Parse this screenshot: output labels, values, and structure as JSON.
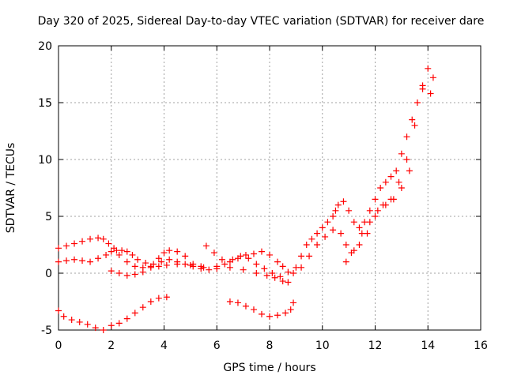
{
  "chart_data": {
    "type": "scatter",
    "title": "Day 320 of 2025, Sidereal Day-to-day VTEC variation (SDTVAR) for receiver dare",
    "xlabel": "GPS time / hours",
    "ylabel": "SDTVAR / TECUs",
    "xlim": [
      0,
      16
    ],
    "ylim": [
      -5,
      20
    ],
    "xticks": [
      "0",
      "2",
      "4",
      "6",
      "8",
      "10",
      "12",
      "14",
      "16"
    ],
    "yticks": [
      "-5",
      "0",
      "5",
      "10",
      "15",
      "20"
    ],
    "grid": true,
    "marker": "+",
    "color": "#ff0000",
    "series": [
      {
        "x": [
          0.0,
          0.3,
          0.6,
          0.9,
          1.2,
          1.5,
          1.7,
          1.9,
          2.1,
          2.3,
          2.6,
          2.9,
          3.2,
          3.5,
          3.8,
          4.1,
          4.5,
          5.0,
          5.5,
          6.0,
          6.5,
          7.0,
          7.5,
          7.9,
          8.2,
          8.5,
          8.7,
          8.9
        ],
        "y": [
          2.2,
          2.4,
          2.6,
          2.8,
          3.0,
          3.1,
          3.0,
          2.6,
          2.2,
          1.6,
          1.0,
          0.6,
          0.5,
          0.5,
          0.6,
          0.7,
          0.8,
          0.7,
          0.5,
          0.6,
          0.5,
          0.3,
          0.0,
          -0.2,
          -0.4,
          -0.7,
          -0.8,
          0.0
        ]
      },
      {
        "x": [
          0.0,
          0.3,
          0.6,
          0.9,
          1.2,
          1.5,
          1.8,
          2.0,
          2.2,
          2.4,
          2.6,
          2.8,
          3.0,
          3.3,
          3.6,
          3.9,
          4.2,
          4.5,
          4.8,
          5.1,
          5.4
        ],
        "y": [
          1.0,
          1.1,
          1.2,
          1.1,
          1.0,
          1.3,
          1.6,
          1.9,
          2.0,
          2.0,
          1.9,
          1.6,
          1.2,
          0.9,
          0.8,
          1.0,
          1.2,
          1.0,
          0.8,
          0.6,
          0.6
        ]
      },
      {
        "x": [
          2.0,
          2.3,
          2.6,
          2.9,
          3.2,
          3.5,
          3.8,
          4.0,
          4.2,
          4.5,
          4.8,
          5.1,
          5.4,
          5.7,
          6.0,
          6.3,
          6.6,
          6.9,
          7.2,
          7.5,
          7.8,
          8.1,
          8.4,
          8.7
        ],
        "y": [
          0.2,
          0.0,
          -0.2,
          -0.1,
          0.1,
          0.6,
          1.3,
          1.8,
          2.0,
          1.9,
          1.5,
          0.8,
          0.4,
          0.3,
          0.4,
          0.8,
          1.2,
          1.5,
          1.3,
          0.8,
          0.4,
          0.0,
          -0.3,
          0.1
        ]
      },
      {
        "x": [
          5.6,
          5.9,
          6.2,
          6.5,
          6.8,
          7.1,
          7.4,
          7.7,
          8.0,
          8.3,
          8.5
        ],
        "y": [
          2.4,
          1.8,
          1.2,
          1.0,
          1.3,
          1.6,
          1.7,
          1.9,
          1.6,
          1.0,
          0.6
        ]
      },
      {
        "x": [
          0.0,
          0.2,
          0.5,
          0.8,
          1.1,
          1.4,
          1.7,
          2.0,
          2.3,
          2.6,
          2.9,
          3.2,
          3.5,
          3.8,
          4.1
        ],
        "y": [
          -3.3,
          -3.8,
          -4.1,
          -4.3,
          -4.5,
          -4.8,
          -5.0,
          -4.6,
          -4.4,
          -4.0,
          -3.5,
          -3.0,
          -2.5,
          -2.2,
          -2.1
        ]
      },
      {
        "x": [
          6.5,
          6.8,
          7.1,
          7.4,
          7.7,
          8.0,
          8.3,
          8.6,
          8.8,
          8.9
        ],
        "y": [
          -2.5,
          -2.6,
          -2.9,
          -3.2,
          -3.6,
          -3.8,
          -3.7,
          -3.5,
          -3.2,
          -2.6
        ]
      },
      {
        "x": [
          9.0,
          9.2,
          9.4,
          9.6,
          9.8,
          10.0,
          10.2,
          10.4,
          10.5,
          10.6,
          10.8,
          11.0,
          11.2,
          11.4,
          11.6,
          11.8,
          12.0,
          12.2,
          12.4,
          12.6,
          12.8,
          13.0,
          13.2,
          13.4,
          13.6,
          13.8,
          14.0,
          14.2
        ],
        "y": [
          0.5,
          1.5,
          2.5,
          3.0,
          3.5,
          4.0,
          4.5,
          5.0,
          5.5,
          6.0,
          6.3,
          5.5,
          4.5,
          4.0,
          4.5,
          5.5,
          6.5,
          7.5,
          8.0,
          8.5,
          9.0,
          10.5,
          12.0,
          13.5,
          15.0,
          16.5,
          18.0,
          17.2
        ]
      },
      {
        "x": [
          9.2,
          9.5,
          9.8,
          10.1,
          10.4,
          10.7,
          10.9,
          11.1,
          11.4,
          11.7,
          12.0,
          12.3,
          12.6,
          12.9,
          13.2,
          13.5,
          13.8,
          14.1
        ],
        "y": [
          0.5,
          1.5,
          2.5,
          3.2,
          3.8,
          3.5,
          2.5,
          1.8,
          2.5,
          3.5,
          5.0,
          6.0,
          6.5,
          8.0,
          10.0,
          13.0,
          16.2,
          15.8
        ]
      },
      {
        "x": [
          10.9,
          11.2,
          11.5,
          11.8,
          12.1,
          12.4,
          12.7,
          13.0,
          13.3
        ],
        "y": [
          1.0,
          2.0,
          3.5,
          4.5,
          5.5,
          6.0,
          6.5,
          7.5,
          9.0
        ]
      }
    ]
  }
}
